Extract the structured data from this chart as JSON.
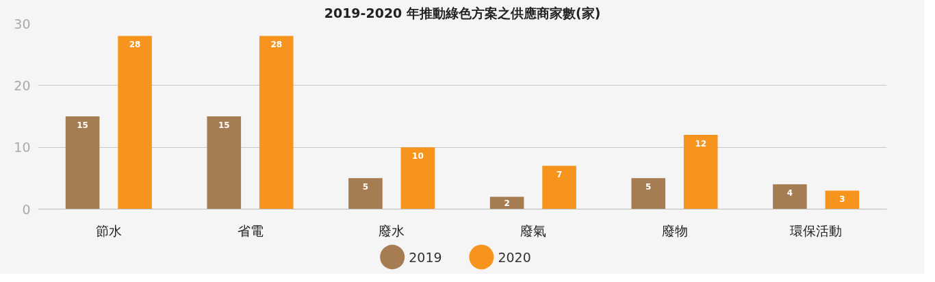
{
  "chart_data": {
    "type": "bar",
    "title": "2019-2020 年推動綠色方案之供應商家數(家)",
    "categories": [
      "節水",
      "省電",
      "廢水",
      "廢氣",
      "廢物",
      "環保活動"
    ],
    "series": [
      {
        "name": "2019",
        "color": "#a67c52",
        "values": [
          15,
          15,
          5,
          2,
          5,
          4
        ]
      },
      {
        "name": "2020",
        "color": "#f7941d",
        "values": [
          28,
          28,
          10,
          7,
          12,
          3
        ]
      }
    ],
    "ylim": [
      0,
      30
    ],
    "yticks": [
      0,
      10,
      20,
      30
    ],
    "grid": "y",
    "legend": "bottom",
    "data_labels": true
  }
}
